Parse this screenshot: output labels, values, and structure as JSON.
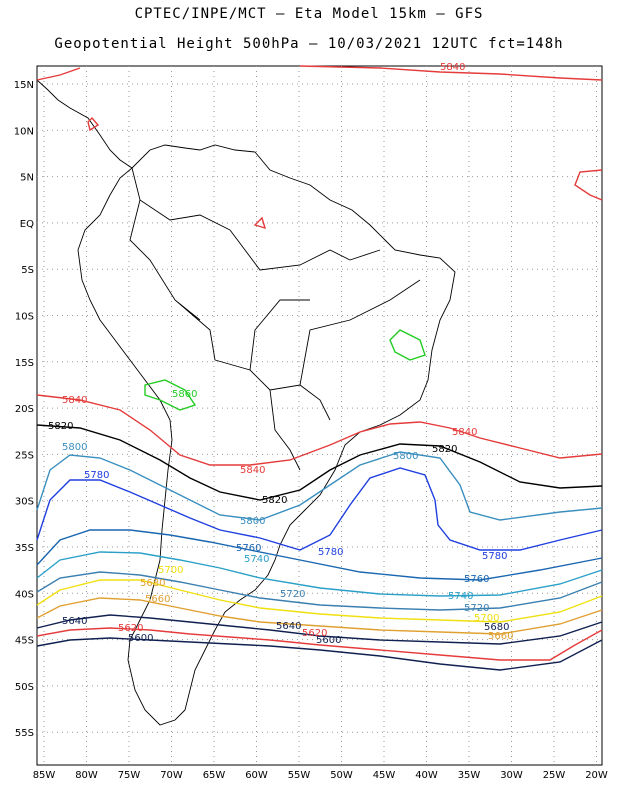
{
  "header": {
    "line1": "CPTEC/INPE/MCT –  Eta Model 15km – GFS",
    "line2": "Geopotential Height 500hPa – 10/03/2021 12UTC fct=148h"
  },
  "axes": {
    "lat_labels": [
      "15N",
      "10N",
      "5N",
      "EQ",
      "5S",
      "10S",
      "15S",
      "20S",
      "25S",
      "30S",
      "35S",
      "40S",
      "45S",
      "50S",
      "55S"
    ],
    "lon_labels": [
      "85W",
      "80W",
      "75W",
      "70W",
      "65W",
      "60W",
      "55W",
      "50W",
      "45W",
      "40W",
      "35W",
      "30W",
      "25W",
      "20W"
    ]
  },
  "contours": [
    {
      "value": "5840",
      "color": "#e53b3b"
    },
    {
      "value": "5820",
      "color": "#000000"
    },
    {
      "value": "5800",
      "color": "#3a8fbf"
    },
    {
      "value": "5780",
      "color": "#1f3fe0"
    },
    {
      "value": "5760",
      "color": "#1a66b0"
    },
    {
      "value": "5740",
      "color": "#2aa0c8"
    },
    {
      "value": "5720",
      "color": "#3a7fb0"
    },
    {
      "value": "5700",
      "color": "#f0e010"
    },
    {
      "value": "5680",
      "color": "#e0a030"
    },
    {
      "value": "5660",
      "color": "#e0a030"
    },
    {
      "value": "5640",
      "color": "#102050"
    },
    {
      "value": "5620",
      "color": "#e53b3b"
    },
    {
      "value": "5600",
      "color": "#102050"
    },
    {
      "value": "5860",
      "color": "#22cc22"
    }
  ]
}
